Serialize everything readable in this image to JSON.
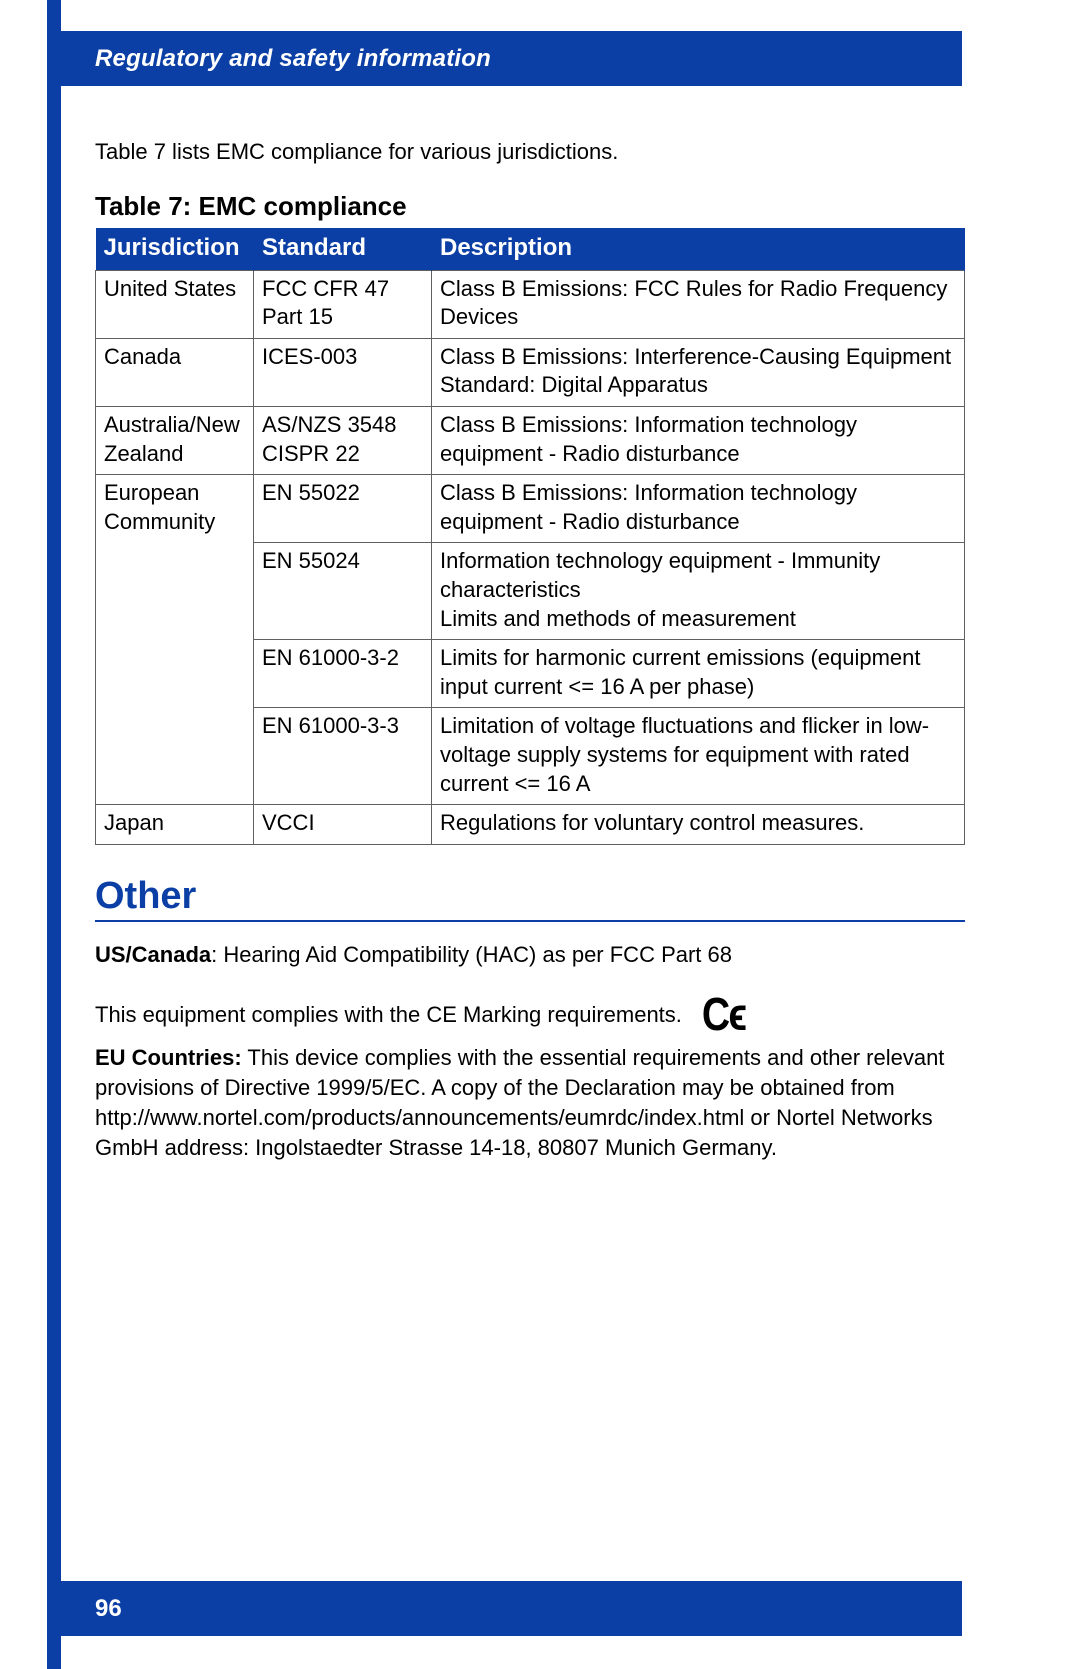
{
  "header": {
    "title": "Regulatory and safety information"
  },
  "intro": "Table 7 lists EMC compliance for various jurisdictions.",
  "table": {
    "caption": "Table 7: EMC compliance",
    "columns": [
      "Jurisdiction",
      "Standard",
      "Description"
    ],
    "rows": [
      {
        "jurisdiction": "United States",
        "standard": "FCC CFR 47 Part 15",
        "description": "Class B Emissions: FCC Rules for Radio Frequency Devices"
      },
      {
        "jurisdiction": "Canada",
        "standard": "ICES-003",
        "description": "Class B Emissions: Interference-Causing Equipment Standard: Digital Apparatus"
      },
      {
        "jurisdiction": "Australia/New Zealand",
        "standard": "AS/NZS 3548 CISPR 22",
        "description": "Class B Emissions: Information technology equipment - Radio disturbance"
      },
      {
        "jurisdiction": "European Community",
        "standard": "EN 55022",
        "description": "Class B Emissions: Information technology equipment - Radio disturbance"
      },
      {
        "jurisdiction": "",
        "standard": "EN 55024",
        "description": "Information technology equipment - Immunity characteristics\nLimits and methods of measurement"
      },
      {
        "jurisdiction": "",
        "standard": "EN 61000-3-2",
        "description": "Limits for harmonic current emissions (equipment input current <= 16 A per phase)"
      },
      {
        "jurisdiction": "",
        "standard": "EN 61000-3-3",
        "description": "Limitation of voltage fluctuations and flicker in low-voltage supply systems for equipment with rated current <= 16 A"
      },
      {
        "jurisdiction": "Japan",
        "standard": "VCCI",
        "description": "Regulations for voluntary control measures."
      }
    ]
  },
  "other": {
    "heading": "Other",
    "p1_bold": "US/Canada",
    "p1_rest": ": Hearing Aid Compatibility (HAC) as per FCC Part 68",
    "p2": "This equipment complies with the CE Marking requirements.",
    "ce_mark": "Cϵ",
    "p3_bold": "EU Countries:",
    "p3_rest": " This device complies with the essential requirements and other relevant provisions of Directive 1999/5/EC. A copy of the Declaration may be obtained from http://www.nortel.com/products/announcements/eumrdc/index.html or Nortel Networks GmbH address: Ingolstaedter Strasse 14-18, 80807 Munich Germany."
  },
  "footer": {
    "page": "96"
  }
}
